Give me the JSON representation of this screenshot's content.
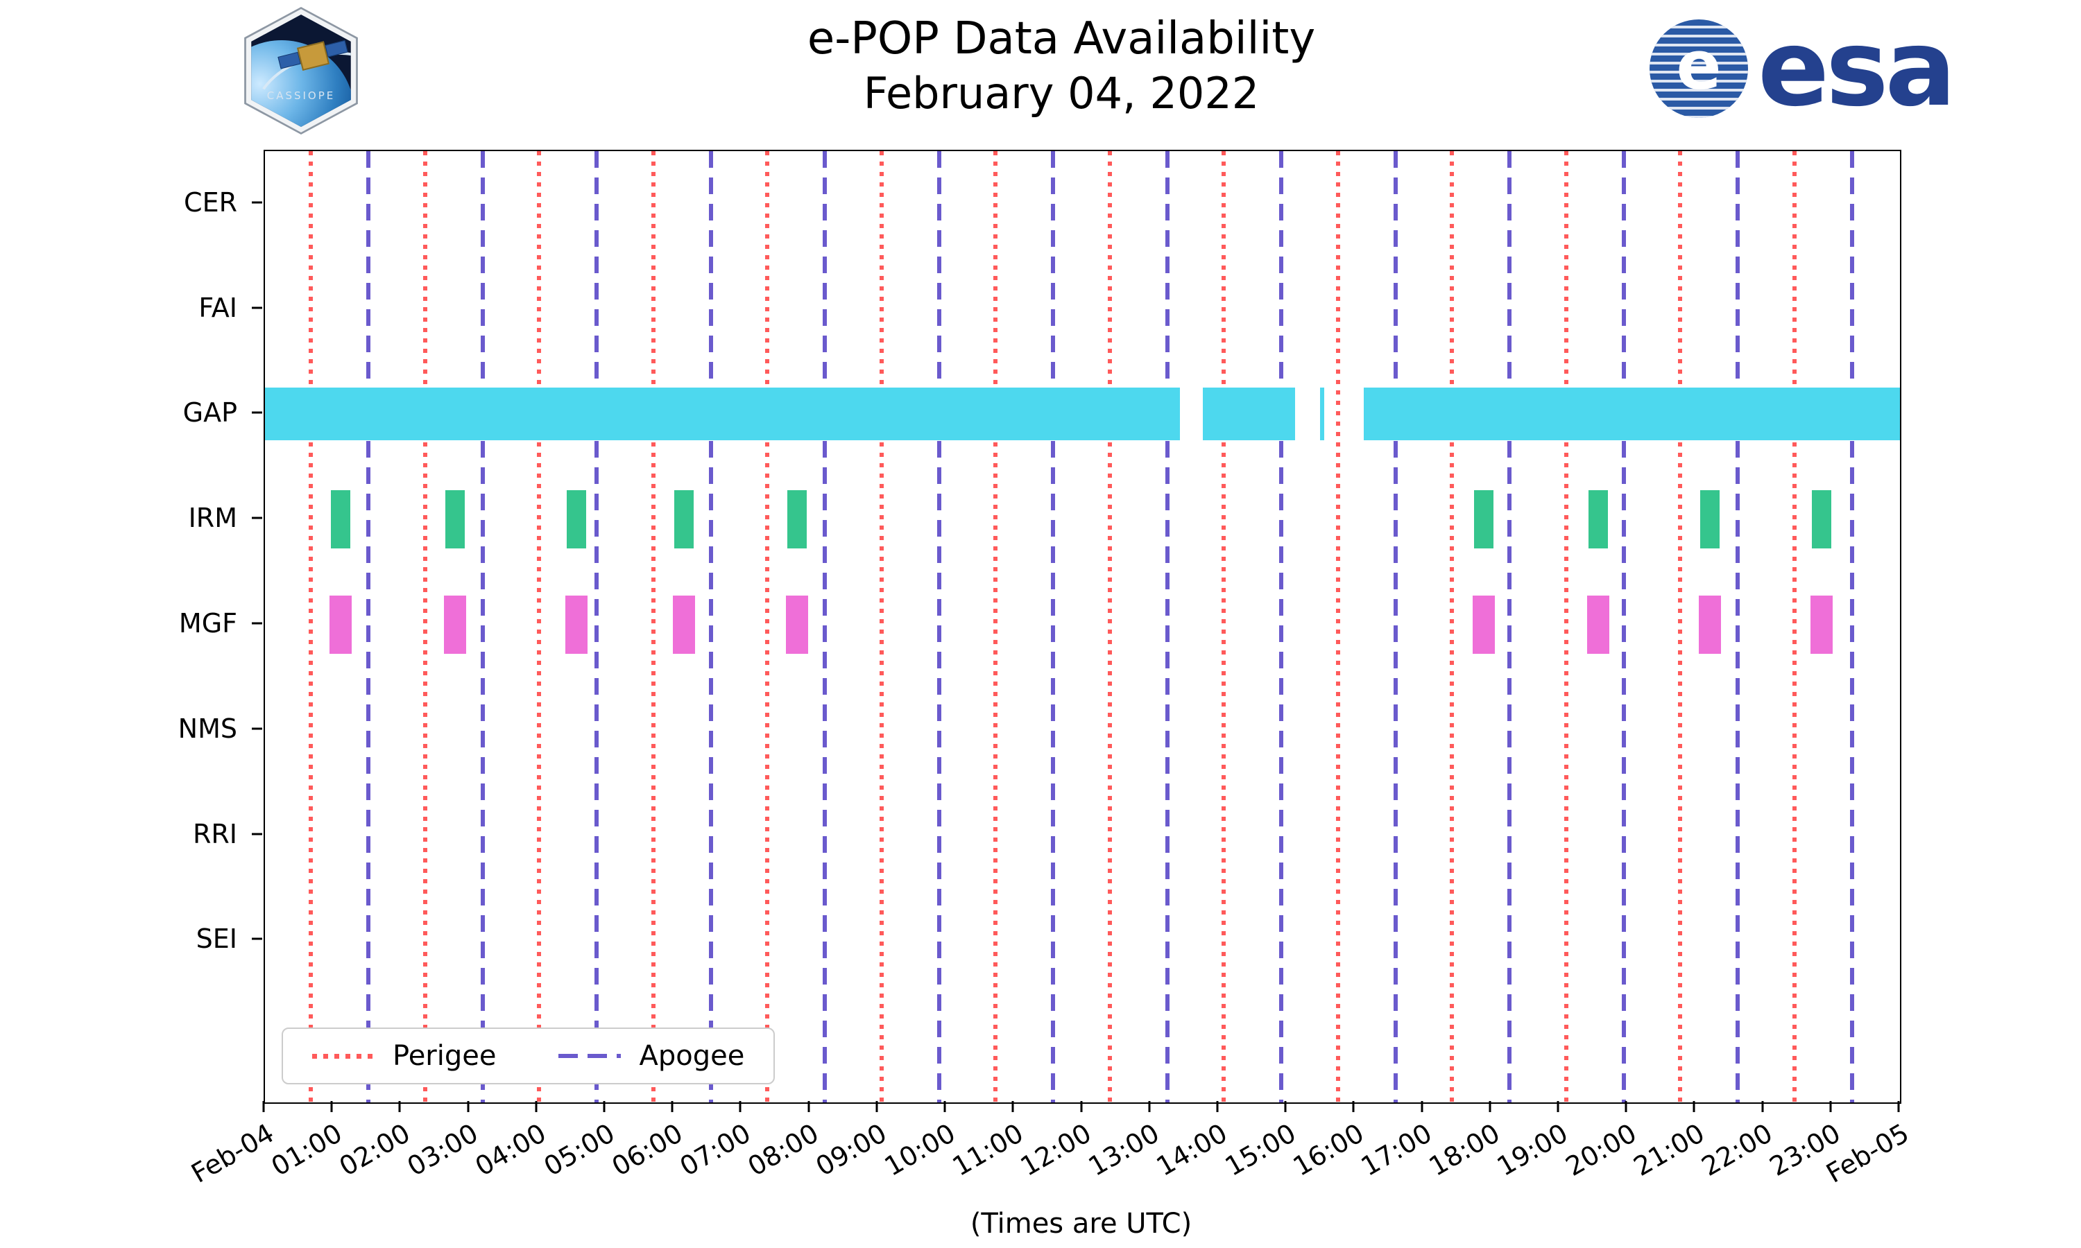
{
  "header": {
    "title_line1": "e-POP Data Availability",
    "title_line2": "February 04, 2022",
    "cassiope_label": "CASSIOPE",
    "esa_text": "esa",
    "esa_emblem_letter": "e"
  },
  "chart_data": {
    "type": "timeline",
    "title": "e-POP Data Availability",
    "subtitle": "February 04, 2022",
    "xlabel": "(Times are UTC)",
    "x_unit": "hours_utc",
    "xlim": [
      0,
      24
    ],
    "grid": false,
    "legend_position": "lower left",
    "x_ticks": [
      {
        "h": 0,
        "label": "Feb-04"
      },
      {
        "h": 1,
        "label": "01:00"
      },
      {
        "h": 2,
        "label": "02:00"
      },
      {
        "h": 3,
        "label": "03:00"
      },
      {
        "h": 4,
        "label": "04:00"
      },
      {
        "h": 5,
        "label": "05:00"
      },
      {
        "h": 6,
        "label": "06:00"
      },
      {
        "h": 7,
        "label": "07:00"
      },
      {
        "h": 8,
        "label": "08:00"
      },
      {
        "h": 9,
        "label": "09:00"
      },
      {
        "h": 10,
        "label": "10:00"
      },
      {
        "h": 11,
        "label": "11:00"
      },
      {
        "h": 12,
        "label": "12:00"
      },
      {
        "h": 13,
        "label": "13:00"
      },
      {
        "h": 14,
        "label": "14:00"
      },
      {
        "h": 15,
        "label": "15:00"
      },
      {
        "h": 16,
        "label": "16:00"
      },
      {
        "h": 17,
        "label": "17:00"
      },
      {
        "h": 18,
        "label": "18:00"
      },
      {
        "h": 19,
        "label": "19:00"
      },
      {
        "h": 20,
        "label": "20:00"
      },
      {
        "h": 21,
        "label": "21:00"
      },
      {
        "h": 22,
        "label": "22:00"
      },
      {
        "h": 23,
        "label": "23:00"
      },
      {
        "h": 24,
        "label": "Feb-05"
      }
    ],
    "rows": [
      {
        "label": "CER",
        "color": "#999999",
        "segments": []
      },
      {
        "label": "FAI",
        "color": "#999999",
        "segments": []
      },
      {
        "label": "GAP",
        "color": "#4dd8ee",
        "segments": [
          [
            0,
            13.43
          ],
          [
            13.77,
            15.12
          ],
          [
            15.49,
            15.55
          ],
          [
            16.13,
            24
          ]
        ]
      },
      {
        "label": "IRM",
        "color": "#35c58d",
        "segments": [
          [
            0.97,
            1.25
          ],
          [
            2.65,
            2.93
          ],
          [
            4.43,
            4.71
          ],
          [
            6.01,
            6.29
          ],
          [
            7.67,
            7.95
          ],
          [
            17.75,
            18.03
          ],
          [
            19.43,
            19.71
          ],
          [
            21.07,
            21.35
          ],
          [
            22.71,
            22.99
          ]
        ]
      },
      {
        "label": "MGF",
        "color": "#ef6fd8",
        "segments": [
          [
            0.95,
            1.27
          ],
          [
            2.63,
            2.95
          ],
          [
            4.41,
            4.73
          ],
          [
            5.99,
            6.31
          ],
          [
            7.65,
            7.97
          ],
          [
            17.73,
            18.05
          ],
          [
            19.41,
            19.73
          ],
          [
            21.05,
            21.37
          ],
          [
            22.69,
            23.01
          ]
        ]
      },
      {
        "label": "NMS",
        "color": "#999999",
        "segments": []
      },
      {
        "label": "RRI",
        "color": "#999999",
        "segments": []
      },
      {
        "label": "SEI",
        "color": "#999999",
        "segments": []
      }
    ],
    "event_lines": {
      "perigee": {
        "label": "Perigee",
        "color": "#ff5a5a",
        "style": "dotted",
        "times": [
          0.67,
          2.35,
          4.02,
          5.7,
          7.37,
          9.05,
          10.72,
          12.4,
          14.07,
          15.75,
          17.42,
          19.1,
          20.77,
          22.45
        ]
      },
      "apogee": {
        "label": "Apogee",
        "color": "#6a5acd",
        "style": "dashed",
        "times": [
          1.52,
          3.2,
          4.87,
          6.55,
          8.22,
          9.9,
          11.57,
          13.25,
          14.92,
          16.6,
          18.27,
          19.95,
          21.62,
          23.3
        ]
      }
    }
  }
}
